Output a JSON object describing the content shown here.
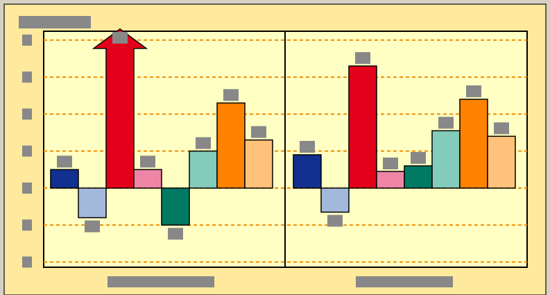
{
  "chart_data": {
    "type": "bar",
    "ylim": [
      -2.14,
      4.24
    ],
    "yticks": [
      -2,
      -1,
      0,
      1,
      2,
      3,
      4
    ],
    "grid": true,
    "series": [
      {
        "color": "#12308f",
        "values": [
          0.5,
          0.9
        ]
      },
      {
        "color": "#a3b9dc",
        "values": [
          -0.8,
          -0.65
        ]
      },
      {
        "color": "#e2001a",
        "values": [
          4.3,
          3.3
        ]
      },
      {
        "color": "#ef85a6",
        "values": [
          0.5,
          0.45
        ]
      },
      {
        "color": "#007a63",
        "values": [
          -1.0,
          0.6
        ]
      },
      {
        "color": "#83cbbb",
        "values": [
          1.0,
          1.55
        ]
      },
      {
        "color": "#ff8200",
        "values": [
          2.3,
          2.4
        ]
      },
      {
        "color": "#ffc27a",
        "values": [
          1.3,
          1.4
        ]
      }
    ]
  }
}
